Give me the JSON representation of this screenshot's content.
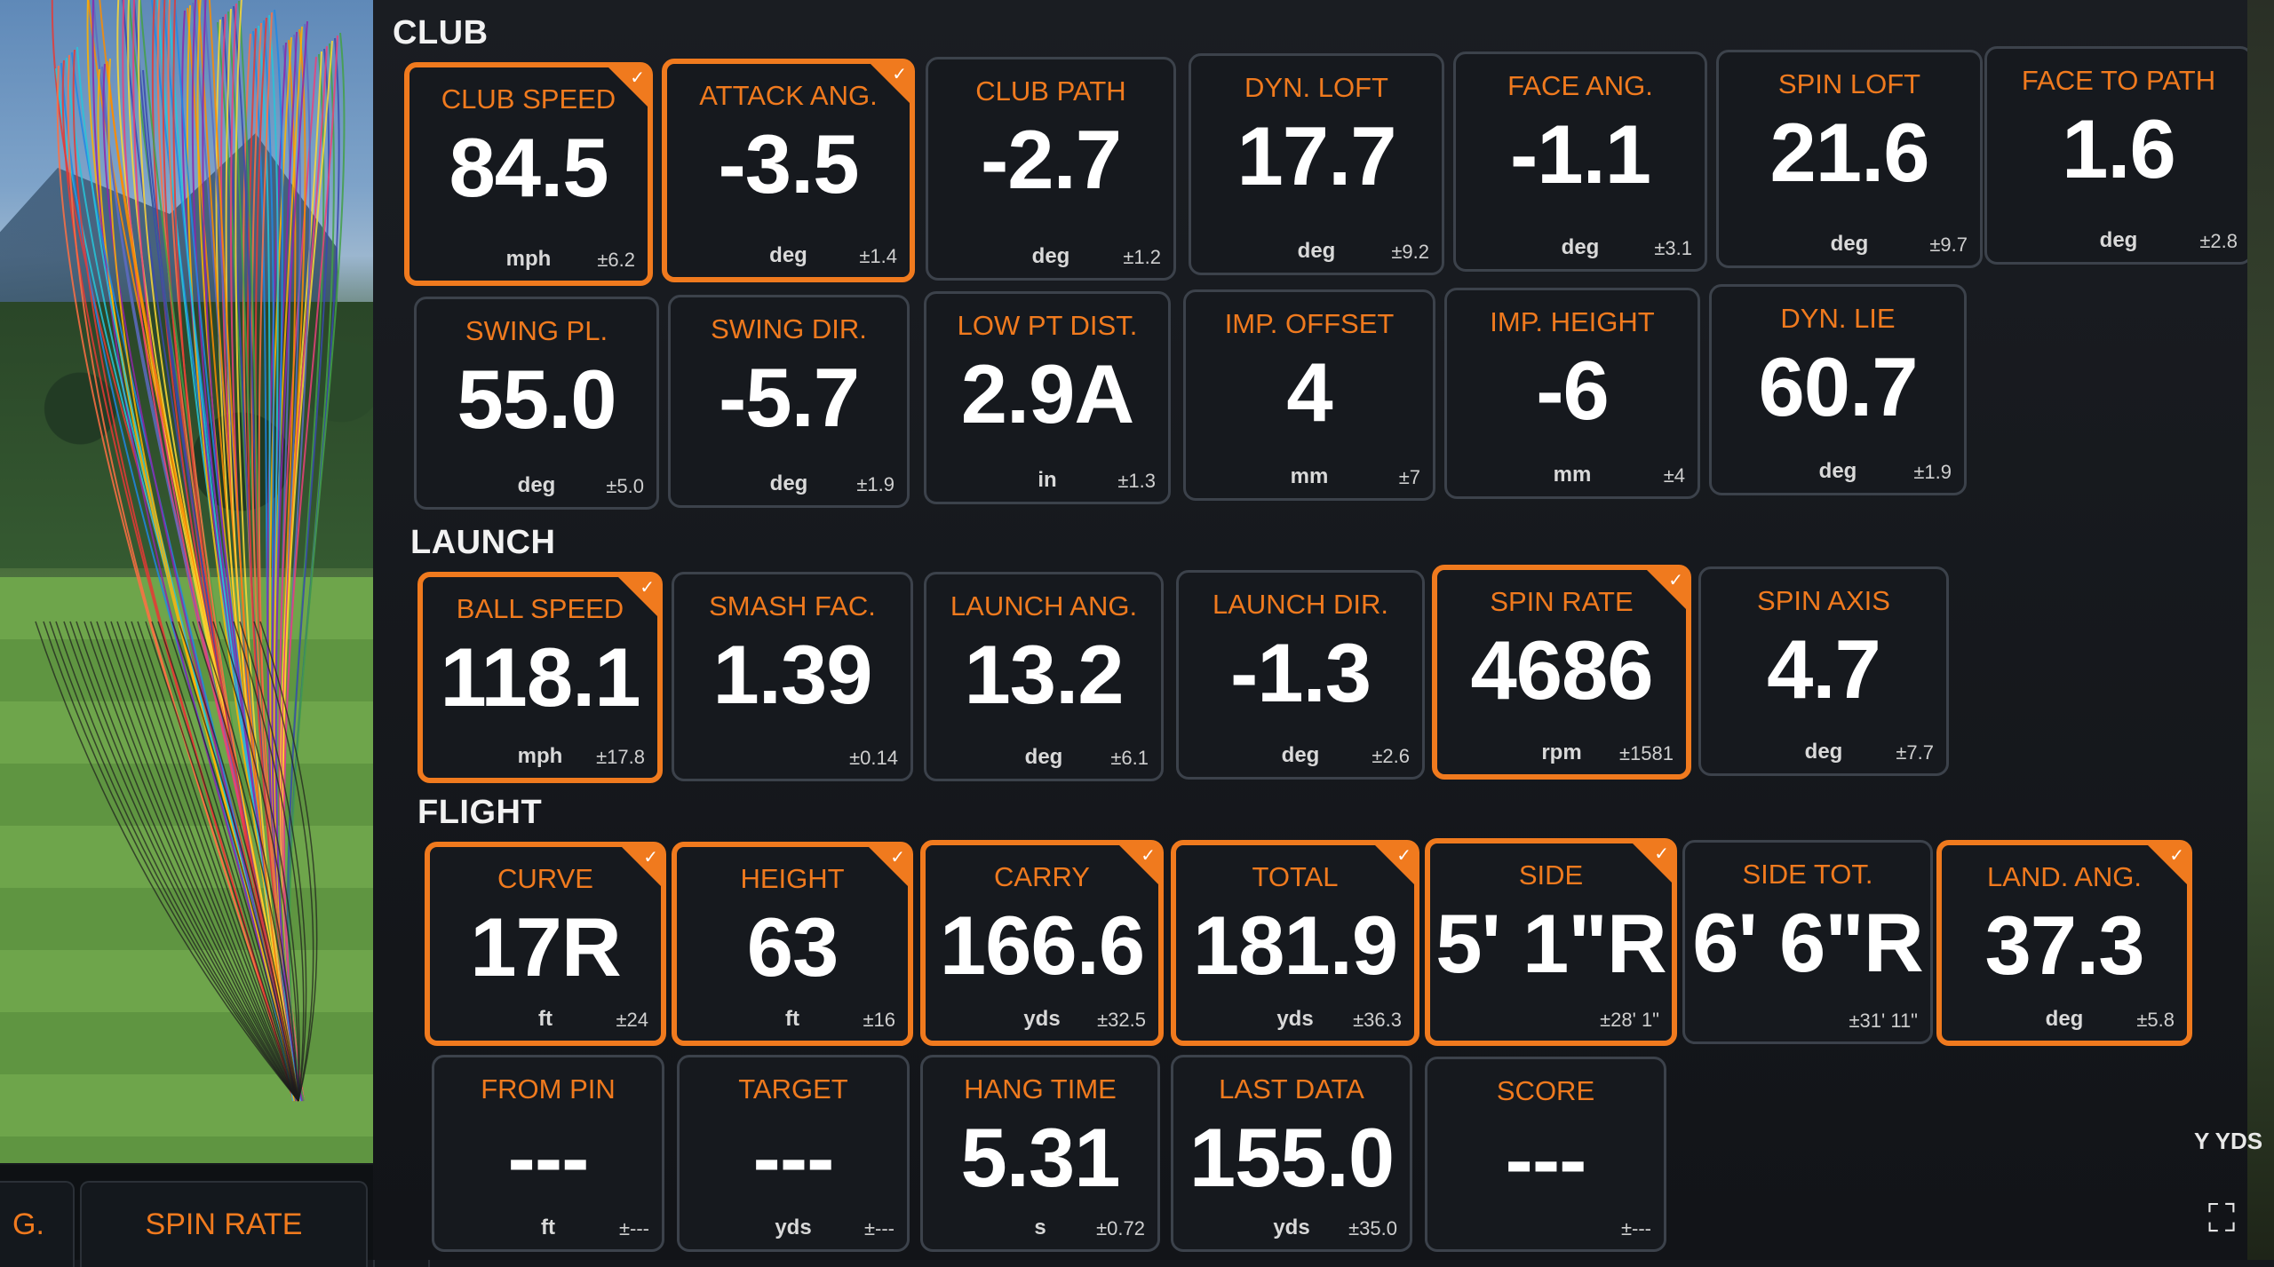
{
  "sections": {
    "club": "CLUB",
    "launch": "LAUNCH",
    "flight": "FLIGHT"
  },
  "accent_color": "#f07a1e",
  "tiles": {
    "club_speed": {
      "label": "CLUB SPEED",
      "value": "84.5",
      "unit": "mph",
      "err": "±6.2"
    },
    "attack_ang": {
      "label": "ATTACK ANG.",
      "value": "-3.5",
      "unit": "deg",
      "err": "±1.4"
    },
    "club_path": {
      "label": "CLUB PATH",
      "value": "-2.7",
      "unit": "deg",
      "err": "±1.2"
    },
    "dyn_loft": {
      "label": "DYN. LOFT",
      "value": "17.7",
      "unit": "deg",
      "err": "±9.2"
    },
    "face_ang": {
      "label": "FACE ANG.",
      "value": "-1.1",
      "unit": "deg",
      "err": "±3.1"
    },
    "spin_loft": {
      "label": "SPIN LOFT",
      "value": "21.6",
      "unit": "deg",
      "err": "±9.7"
    },
    "face_to_path": {
      "label": "FACE TO PATH",
      "value": "1.6",
      "unit": "deg",
      "err": "±2.8"
    },
    "swing_pl": {
      "label": "SWING PL.",
      "value": "55.0",
      "unit": "deg",
      "err": "±5.0"
    },
    "swing_dir": {
      "label": "SWING DIR.",
      "value": "-5.7",
      "unit": "deg",
      "err": "±1.9"
    },
    "low_pt_dist": {
      "label": "LOW PT DIST.",
      "value": "2.9A",
      "unit": "in",
      "err": "±1.3"
    },
    "imp_offset": {
      "label": "IMP. OFFSET",
      "value": "4",
      "unit": "mm",
      "err": "±7"
    },
    "imp_height": {
      "label": "IMP. HEIGHT",
      "value": "-6",
      "unit": "mm",
      "err": "±4"
    },
    "dyn_lie": {
      "label": "DYN. LIE",
      "value": "60.7",
      "unit": "deg",
      "err": "±1.9"
    },
    "ball_speed": {
      "label": "BALL SPEED",
      "value": "118.1",
      "unit": "mph",
      "err": "±17.8"
    },
    "smash_fac": {
      "label": "SMASH FAC.",
      "value": "1.39",
      "unit": "",
      "err": "±0.14"
    },
    "launch_ang": {
      "label": "LAUNCH ANG.",
      "value": "13.2",
      "unit": "deg",
      "err": "±6.1"
    },
    "launch_dir": {
      "label": "LAUNCH DIR.",
      "value": "-1.3",
      "unit": "deg",
      "err": "±2.6"
    },
    "spin_rate": {
      "label": "SPIN RATE",
      "value": "4686",
      "unit": "rpm",
      "err": "±1581"
    },
    "spin_axis": {
      "label": "SPIN AXIS",
      "value": "4.7",
      "unit": "deg",
      "err": "±7.7"
    },
    "curve": {
      "label": "CURVE",
      "value": "17R",
      "unit": "ft",
      "err": "±24"
    },
    "height": {
      "label": "HEIGHT",
      "value": "63",
      "unit": "ft",
      "err": "±16"
    },
    "carry": {
      "label": "CARRY",
      "value": "166.6",
      "unit": "yds",
      "err": "±32.5"
    },
    "total": {
      "label": "TOTAL",
      "value": "181.9",
      "unit": "yds",
      "err": "±36.3"
    },
    "side": {
      "label": "SIDE",
      "value": "5' 1\"R",
      "unit": "",
      "err": "±28' 1\""
    },
    "side_tot": {
      "label": "SIDE TOT.",
      "value": "6' 6\"R",
      "unit": "",
      "err": "±31' 11\""
    },
    "land_ang": {
      "label": "LAND. ANG.",
      "value": "37.3",
      "unit": "deg",
      "err": "±5.8"
    },
    "from_pin": {
      "label": "FROM PIN",
      "value": "---",
      "unit": "ft",
      "err": "±---"
    },
    "target": {
      "label": "TARGET",
      "value": "---",
      "unit": "yds",
      "err": "±---"
    },
    "hang_time": {
      "label": "HANG TIME",
      "value": "5.31",
      "unit": "s",
      "err": "±0.72"
    },
    "last_data": {
      "label": "LAST DATA",
      "value": "155.0",
      "unit": "yds",
      "err": "±35.0"
    },
    "score": {
      "label": "SCORE",
      "value": "---",
      "unit": "",
      "err": "±---"
    }
  },
  "bottom_tabs": {
    "left_partial": "G.",
    "spin_rate": "SPIN RATE"
  },
  "right_label": "Y YDS",
  "icons": {
    "corner_check": "✓",
    "expand": "⛶"
  }
}
